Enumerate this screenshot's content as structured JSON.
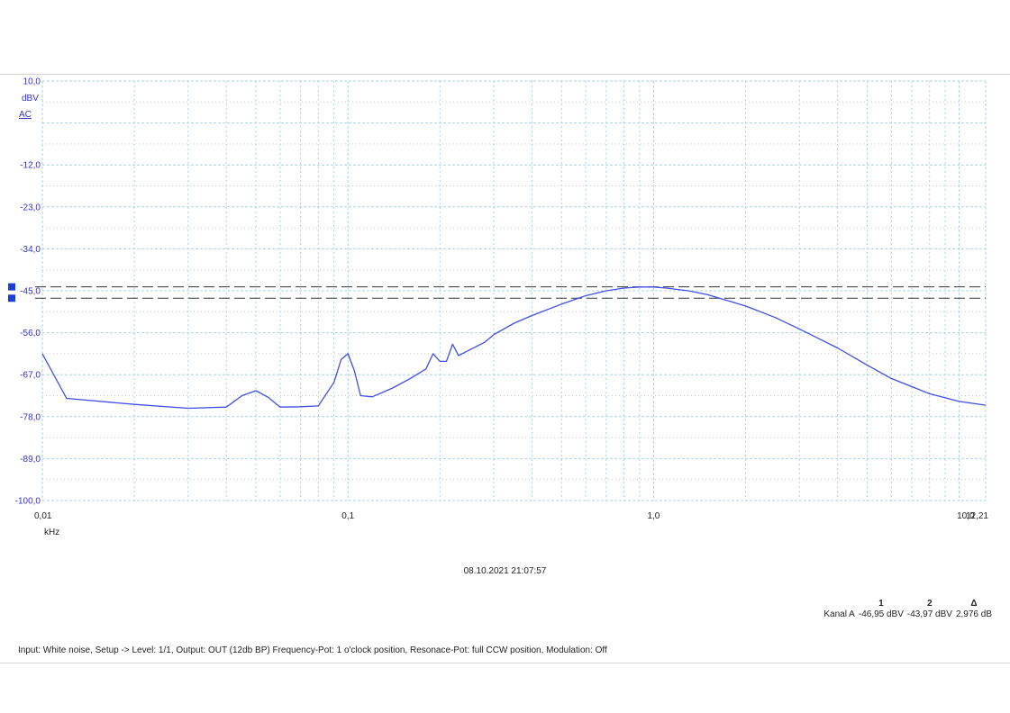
{
  "chart_data": {
    "type": "line",
    "title": "",
    "xlabel": "kHz",
    "ylabel": "dBV",
    "y_unit_line2": "AC",
    "x_scale": "log",
    "xlim": [
      0.01,
      12.21
    ],
    "ylim": [
      -100.0,
      10.0
    ],
    "y_ticks": [
      10.0,
      -12.0,
      -23.0,
      -34.0,
      -45.0,
      -56.0,
      -67.0,
      -78.0,
      -89.0,
      -100.0
    ],
    "y_tick_labels": [
      "10,0",
      "-12,0",
      "-23,0",
      "-34,0",
      "-45,0",
      "-56,0",
      "-67,0",
      "-78,0",
      "-89,0",
      "-100,0"
    ],
    "x_ticks": [
      0.01,
      0.1,
      1.0,
      10.0,
      12.21
    ],
    "x_tick_labels": [
      "0,01",
      "0,1",
      "1,0",
      "10,0",
      "12,21"
    ],
    "grid": true,
    "series_color": "#3f4fe6",
    "series": [
      {
        "x": [
          0.01,
          0.012,
          0.02,
          0.03,
          0.04,
          0.045,
          0.05,
          0.055,
          0.06,
          0.07,
          0.08,
          0.09,
          0.095,
          0.1,
          0.105,
          0.11,
          0.12,
          0.14,
          0.16,
          0.18,
          0.19,
          0.2,
          0.21,
          0.22,
          0.23,
          0.25,
          0.28,
          0.3,
          0.35,
          0.4,
          0.5,
          0.6,
          0.7,
          0.8,
          0.9,
          1.0,
          1.1,
          1.3,
          1.5,
          2.0,
          2.5,
          3.0,
          4.0,
          5.0,
          6.0,
          8.0,
          10.0,
          12.21
        ],
        "y": [
          -61.5,
          -73.2,
          -74.8,
          -75.8,
          -75.5,
          -72.5,
          -71.2,
          -73.0,
          -75.5,
          -75.4,
          -75.2,
          -69.0,
          -63.0,
          -61.5,
          -66.0,
          -72.5,
          -72.8,
          -70.5,
          -68.0,
          -65.5,
          -61.5,
          -63.5,
          -63.5,
          -59.0,
          -62.0,
          -60.5,
          -58.5,
          -56.5,
          -53.5,
          -51.5,
          -48.5,
          -46.3,
          -45.0,
          -44.3,
          -44.0,
          -44.0,
          -44.3,
          -45.0,
          -46.0,
          -49.0,
          -52.0,
          -55.0,
          -60.0,
          -64.5,
          -68.0,
          -72.0,
          -74.0,
          -75.0
        ]
      }
    ],
    "cursors": [
      {
        "name": "1",
        "y": -46.95
      },
      {
        "name": "2",
        "y": -43.97
      }
    ]
  },
  "timestamp": "08.10.2021 21:07:57",
  "readout": {
    "col1": "1",
    "col2": "2",
    "col3": "Δ",
    "row_label": "Kanal A",
    "v1": "-46,95 dBV",
    "v2": "-43,97 dBV",
    "v3": "2,976 dB"
  },
  "info_line": "Input: White noise, Setup -> Level: 1/1, Output: OUT (12db BP)  Frequency-Pot: 1 o'clock position, Resonace-Pot: full CCW position, Modulation: Off",
  "colors": {
    "grid": "#a9d4e6",
    "axis_text": "#3333cc",
    "cursor": "#333333",
    "marker": "#1a3fd6"
  }
}
